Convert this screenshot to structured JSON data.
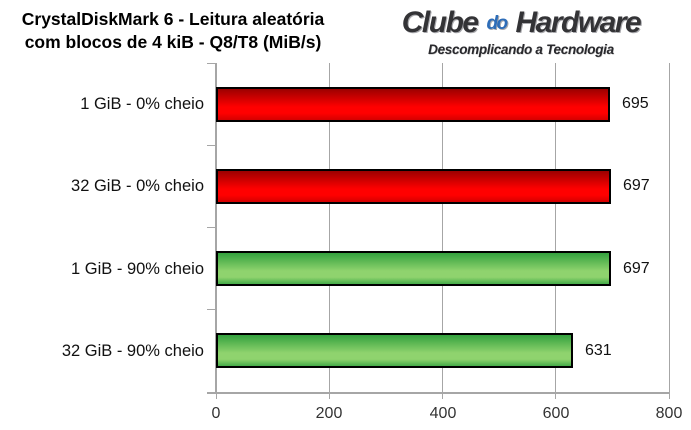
{
  "header": {
    "title_line1": "CrystalDiskMark 6 - Leitura aleatória",
    "title_line2": "com blocos de 4 kiB - Q8/T8 (MiB/s)"
  },
  "logo": {
    "word1": "Clube",
    "word2": "do",
    "word3": "Hardware",
    "tagline": "Descomplicando a Tecnologia",
    "accent_color": "#2e6db8",
    "text_color": "#333336"
  },
  "chart_data": {
    "type": "bar",
    "orientation": "horizontal",
    "title": "CrystalDiskMark 6 - Leitura aleatória com blocos de 4 kiB - Q8/T8 (MiB/s)",
    "categories": [
      "1 GiB - 0% cheio",
      "32 GiB - 0% cheio",
      "1 GiB - 90% cheio",
      "32 GiB - 90% cheio"
    ],
    "values": [
      695,
      697,
      697,
      631
    ],
    "value_labels": [
      "695",
      "697",
      "697",
      "631"
    ],
    "bar_colors": [
      "red",
      "red",
      "green",
      "green"
    ],
    "xlim": [
      0,
      800
    ],
    "x_ticks": [
      0,
      200,
      400,
      600,
      800
    ],
    "grid": true,
    "legend": "none",
    "colors": {
      "red_top": "#9c0000",
      "red_mid": "#ff0000",
      "red_bottom": "#d40000",
      "green_top": "#33a13e",
      "green_mid": "#8fd36e",
      "green_bottom": "#44ac49",
      "axis": "#a6a6a6",
      "text": "#111111"
    }
  }
}
